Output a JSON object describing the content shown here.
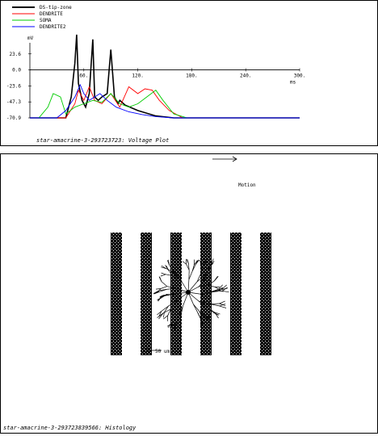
{
  "top_panel": {
    "caption": "star-amacrine-3-293723723: Voltage Plot"
  },
  "bottom_panel": {
    "caption": "star-amacrine-3-293723839566: Histology",
    "motion_label": "Motion",
    "scale_label": "50 um",
    "arrow_icon": "right-arrow-icon",
    "bar_count": 6,
    "bar_color": "#000000"
  },
  "chart_data": {
    "type": "line",
    "title": "",
    "ylabel": "mV",
    "xlabel": "ms",
    "ylim": [
      -70.9,
      40
    ],
    "xlim": [
      0,
      300
    ],
    "y_ticks": [
      "23.6",
      "0.0",
      "-23.6",
      "-47.3",
      "-70.9"
    ],
    "x_ticks": [
      "60.",
      "120.",
      "180.",
      "240.",
      "300."
    ],
    "series": [
      {
        "name": "DS-tip-zone",
        "color": "#000000",
        "x": [
          0,
          40,
          46,
          50,
          52,
          54,
          58,
          62,
          66,
          70,
          72,
          76,
          80,
          86,
          90,
          94,
          98,
          100,
          106,
          120,
          140,
          160,
          300
        ],
        "y": [
          -70.9,
          -70.9,
          -40,
          10,
          52,
          -20,
          -45,
          -55,
          -35,
          45,
          -40,
          -45,
          -40,
          -35,
          30,
          -40,
          -50,
          -45,
          -52,
          -60,
          -68,
          -70.9,
          -70.9
        ]
      },
      {
        "name": "DENDRITE",
        "color": "#ff0000",
        "x": [
          0,
          40,
          50,
          54,
          60,
          66,
          72,
          80,
          90,
          100,
          110,
          120,
          128,
          136,
          144,
          155,
          170,
          300
        ],
        "y": [
          -70.9,
          -70.9,
          -50,
          -30,
          -45,
          -25,
          -45,
          -50,
          -35,
          -55,
          -25,
          -35,
          -28,
          -30,
          -45,
          -60,
          -70.9,
          -70.9
        ]
      },
      {
        "name": "SOMA",
        "color": "#00cc00",
        "x": [
          0,
          10,
          20,
          26,
          34,
          40,
          50,
          60,
          70,
          80,
          90,
          100,
          110,
          120,
          130,
          140,
          148,
          160,
          175,
          300
        ],
        "y": [
          -70.9,
          -70.9,
          -55,
          -35,
          -40,
          -65,
          -55,
          -50,
          -45,
          -48,
          -35,
          -50,
          -55,
          -50,
          -40,
          -30,
          -45,
          -65,
          -70.9,
          -70.9
        ]
      },
      {
        "name": "DENDRITE2",
        "color": "#0000ff",
        "x": [
          0,
          30,
          40,
          50,
          56,
          60,
          66,
          72,
          78,
          86,
          96,
          110,
          125,
          140,
          160,
          300
        ],
        "y": [
          -70.9,
          -70.9,
          -60,
          -40,
          -22,
          -35,
          -45,
          -40,
          -35,
          -45,
          -55,
          -62,
          -66,
          -69,
          -70.9,
          -70.9
        ]
      }
    ]
  }
}
